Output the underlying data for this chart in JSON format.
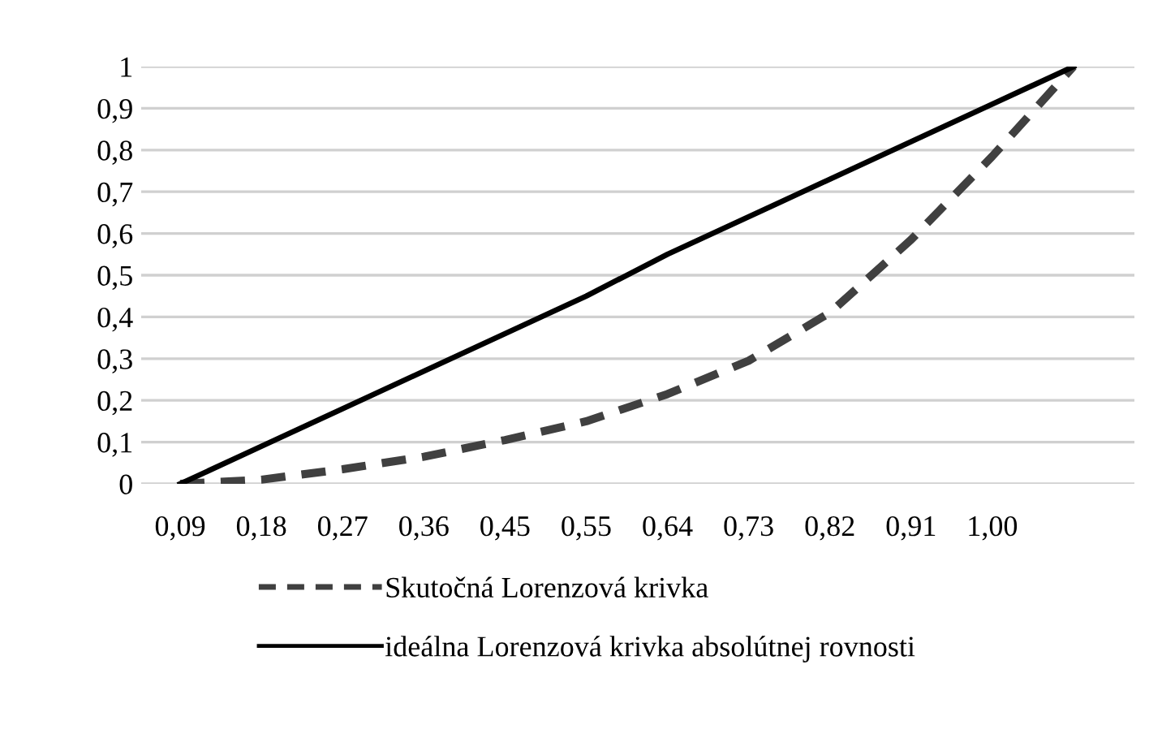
{
  "chart_data": {
    "type": "line",
    "categories": [
      "0,09",
      "0,18",
      "0,27",
      "0,36",
      "0,45",
      "0,55",
      "0,64",
      "0,73",
      "0,82",
      "0,91",
      "1,00",
      null
    ],
    "series": [
      {
        "name": "Skutočná Lorenzová krivka",
        "color": "#404040",
        "line_style": "dashed",
        "values": [
          0,
          0.01,
          0.035,
          0.065,
          0.105,
          0.15,
          0.215,
          0.295,
          0.41,
          0.585,
          0.785,
          1.0
        ]
      },
      {
        "name": "ideálna Lorenzová krivka absolútnej rovnosti",
        "color": "#000000",
        "line_style": "solid",
        "values": [
          0,
          0.09,
          0.18,
          0.27,
          0.36,
          0.45,
          0.55,
          0.64,
          0.73,
          0.82,
          0.91,
          1.0
        ]
      }
    ],
    "ylim": [
      0,
      1
    ],
    "yticks": [
      0,
      {
        "value": 0.1,
        "label": "0,1"
      },
      {
        "value": 0.2,
        "label": "0,2"
      },
      {
        "value": 0.3,
        "label": "0,3"
      },
      {
        "value": 0.4,
        "label": "0,4"
      },
      {
        "value": 0.5,
        "label": "0,5"
      },
      {
        "value": 0.6,
        "label": "0,6"
      },
      {
        "value": 0.7,
        "label": "0,7"
      },
      {
        "value": 0.8,
        "label": "0,8"
      },
      {
        "value": 0.9,
        "label": "0,9"
      },
      1
    ],
    "grid": "y",
    "legend": "bottom"
  }
}
